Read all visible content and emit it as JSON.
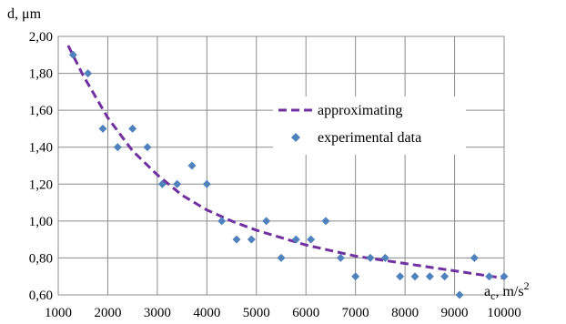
{
  "chart_data": {
    "type": "scatter",
    "ylabel": "d, μm",
    "xlabel_main": "a",
    "xlabel_sub": "c",
    "xlabel_rest": ", m/s",
    "xlabel_sup": "2",
    "xlim": [
      1000,
      10000
    ],
    "ylim": [
      0.6,
      2.0
    ],
    "x_ticks": [
      1000,
      2000,
      3000,
      4000,
      5000,
      6000,
      7000,
      8000,
      9000,
      10000
    ],
    "x_tick_labels": [
      "1000",
      "2000",
      "3000",
      "4000",
      "5000",
      "6000",
      "7000",
      "8000",
      "9000",
      "10000"
    ],
    "y_ticks": [
      0.6,
      0.8,
      1.0,
      1.2,
      1.4,
      1.6,
      1.8,
      2.0
    ],
    "y_tick_labels": [
      "0,60",
      "0,80",
      "1,00",
      "1,20",
      "1,40",
      "1,60",
      "1,80",
      "2,00"
    ],
    "grid": true,
    "legend_position": "upper-right",
    "series": [
      {
        "name": "approximating",
        "kind": "line",
        "style": "dashed",
        "color": "#7030A0",
        "x": [
          1200,
          1500,
          2000,
          2500,
          3000,
          3500,
          4000,
          4500,
          5000,
          5500,
          6000,
          6500,
          7000,
          7500,
          8000,
          8500,
          9000,
          9500,
          10000
        ],
        "y": [
          1.95,
          1.79,
          1.56,
          1.38,
          1.25,
          1.14,
          1.06,
          1.0,
          0.95,
          0.91,
          0.87,
          0.84,
          0.81,
          0.79,
          0.77,
          0.75,
          0.73,
          0.71,
          0.69
        ]
      },
      {
        "name": "experimental data",
        "kind": "scatter",
        "marker": "diamond",
        "color": "#4F81BD",
        "x": [
          1300,
          1600,
          1900,
          2200,
          2500,
          2800,
          3100,
          3400,
          3700,
          4000,
          4300,
          4600,
          4900,
          5200,
          5500,
          5800,
          6100,
          6400,
          6700,
          7000,
          7300,
          7600,
          7900,
          8200,
          8500,
          8800,
          9100,
          9400,
          9700,
          10000
        ],
        "y": [
          1.9,
          1.8,
          1.5,
          1.4,
          1.5,
          1.4,
          1.2,
          1.2,
          1.3,
          1.2,
          1.0,
          0.9,
          0.9,
          1.0,
          0.8,
          0.9,
          0.9,
          1.0,
          0.8,
          0.7,
          0.8,
          0.8,
          0.7,
          0.7,
          0.7,
          0.7,
          0.6,
          0.8,
          0.7,
          0.7
        ]
      }
    ]
  }
}
